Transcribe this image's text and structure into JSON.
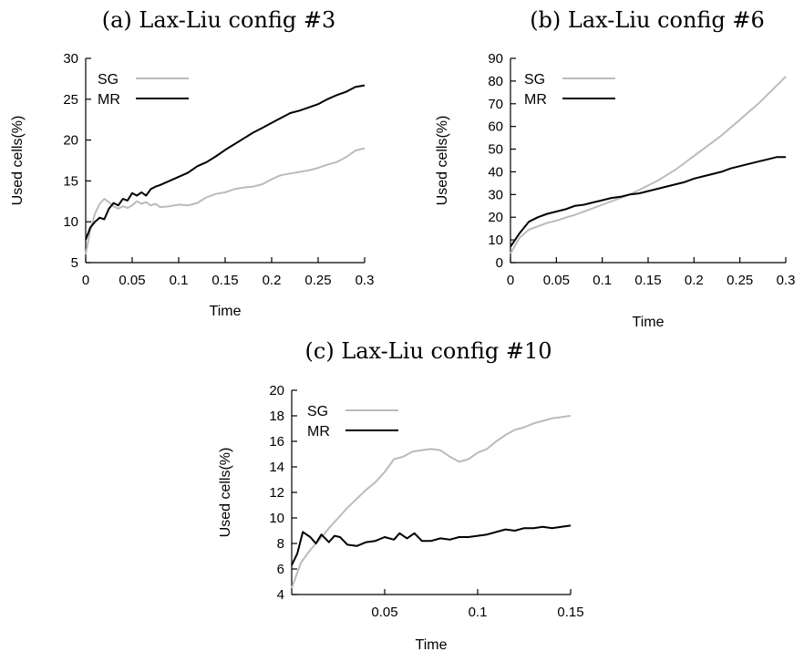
{
  "chart_data": [
    {
      "type": "line",
      "title": "(a) Lax-Liu config #3",
      "xlabel": "Time",
      "ylabel": "Used cells(%)",
      "xlim": [
        0,
        0.3
      ],
      "ylim": [
        5,
        30
      ],
      "xticks": [
        0,
        0.05,
        0.1,
        0.15,
        0.2,
        0.25,
        0.3
      ],
      "xtick_labels": [
        "0",
        "0.05",
        "0.1",
        "0.15",
        "0.2",
        "0.25",
        "0.3"
      ],
      "yticks": [
        5,
        10,
        15,
        20,
        25,
        30
      ],
      "ytick_labels": [
        "5",
        "10",
        "15",
        "20",
        "25",
        "30"
      ],
      "grid": false,
      "legend_position": "top-left",
      "series": [
        {
          "name": "SG",
          "color": "#bbbbbb",
          "x": [
            0,
            0.005,
            0.01,
            0.015,
            0.02,
            0.025,
            0.03,
            0.035,
            0.04,
            0.045,
            0.05,
            0.055,
            0.06,
            0.065,
            0.07,
            0.075,
            0.08,
            0.09,
            0.1,
            0.11,
            0.12,
            0.13,
            0.14,
            0.15,
            0.16,
            0.17,
            0.18,
            0.19,
            0.2,
            0.21,
            0.22,
            0.23,
            0.24,
            0.25,
            0.26,
            0.27,
            0.28,
            0.29,
            0.3
          ],
          "y": [
            6.0,
            9.0,
            11.0,
            12.2,
            12.8,
            12.4,
            11.9,
            11.6,
            11.9,
            11.7,
            12.0,
            12.5,
            12.2,
            12.4,
            12.0,
            12.2,
            11.8,
            11.9,
            12.1,
            12.0,
            12.3,
            13.0,
            13.4,
            13.6,
            14.0,
            14.2,
            14.3,
            14.6,
            15.2,
            15.7,
            15.9,
            16.1,
            16.3,
            16.6,
            17.0,
            17.3,
            17.9,
            18.7,
            19.0
          ]
        },
        {
          "name": "MR",
          "color": "#000000",
          "x": [
            0,
            0.005,
            0.01,
            0.015,
            0.02,
            0.025,
            0.03,
            0.035,
            0.04,
            0.045,
            0.05,
            0.055,
            0.06,
            0.065,
            0.07,
            0.075,
            0.08,
            0.09,
            0.1,
            0.11,
            0.12,
            0.13,
            0.14,
            0.15,
            0.16,
            0.17,
            0.18,
            0.19,
            0.2,
            0.21,
            0.22,
            0.23,
            0.24,
            0.25,
            0.26,
            0.27,
            0.28,
            0.29,
            0.3
          ],
          "y": [
            7.8,
            9.3,
            10.0,
            10.5,
            10.3,
            11.6,
            12.3,
            12.0,
            12.8,
            12.6,
            13.5,
            13.2,
            13.6,
            13.2,
            14.0,
            14.3,
            14.5,
            15.0,
            15.5,
            16.0,
            16.8,
            17.3,
            18.0,
            18.8,
            19.5,
            20.2,
            20.9,
            21.5,
            22.1,
            22.7,
            23.3,
            23.6,
            24.0,
            24.4,
            25.0,
            25.5,
            25.9,
            26.5,
            26.7
          ]
        }
      ]
    },
    {
      "type": "line",
      "title": "(b) Lax-Liu config #6",
      "xlabel": "Time",
      "ylabel": "Used cells(%)",
      "xlim": [
        0,
        0.3
      ],
      "ylim": [
        0,
        90
      ],
      "xticks": [
        0,
        0.05,
        0.1,
        0.15,
        0.2,
        0.25,
        0.3
      ],
      "xtick_labels": [
        "0",
        "0.05",
        "0.1",
        "0.15",
        "0.2",
        "0.25",
        "0.3"
      ],
      "yticks": [
        0,
        10,
        20,
        30,
        40,
        50,
        60,
        70,
        80,
        90
      ],
      "ytick_labels": [
        "0",
        "10",
        "20",
        "30",
        "40",
        "50",
        "60",
        "70",
        "80",
        "90"
      ],
      "grid": false,
      "legend_position": "top-left",
      "series": [
        {
          "name": "SG",
          "color": "#bbbbbb",
          "x": [
            0,
            0.01,
            0.02,
            0.03,
            0.04,
            0.05,
            0.06,
            0.07,
            0.08,
            0.09,
            0.1,
            0.11,
            0.12,
            0.13,
            0.14,
            0.15,
            0.16,
            0.17,
            0.18,
            0.19,
            0.2,
            0.21,
            0.22,
            0.23,
            0.24,
            0.25,
            0.26,
            0.27,
            0.28,
            0.29,
            0.3
          ],
          "y": [
            4.0,
            11.0,
            14.5,
            16.0,
            17.5,
            18.5,
            19.8,
            21.0,
            22.5,
            24.0,
            25.5,
            27.0,
            28.5,
            30.0,
            32.0,
            34.0,
            36.0,
            38.5,
            41.0,
            44.0,
            47.0,
            50.0,
            53.0,
            56.0,
            59.5,
            63.0,
            66.5,
            70.0,
            74.0,
            78.0,
            82.0
          ]
        },
        {
          "name": "MR",
          "color": "#000000",
          "x": [
            0,
            0.01,
            0.02,
            0.03,
            0.04,
            0.05,
            0.06,
            0.07,
            0.08,
            0.09,
            0.1,
            0.11,
            0.12,
            0.13,
            0.14,
            0.15,
            0.16,
            0.17,
            0.18,
            0.19,
            0.2,
            0.21,
            0.22,
            0.23,
            0.24,
            0.25,
            0.26,
            0.27,
            0.28,
            0.29,
            0.3
          ],
          "y": [
            7.0,
            13.0,
            18.0,
            20.0,
            21.5,
            22.5,
            23.5,
            25.0,
            25.5,
            26.5,
            27.5,
            28.5,
            29.0,
            30.0,
            30.5,
            31.5,
            32.5,
            33.5,
            34.5,
            35.5,
            37.0,
            38.0,
            39.0,
            40.0,
            41.5,
            42.5,
            43.5,
            44.5,
            45.5,
            46.5,
            46.5
          ]
        }
      ]
    },
    {
      "type": "line",
      "title": "(c) Lax-Liu config #10",
      "xlabel": "Time",
      "ylabel": "Used cells(%)",
      "xlim": [
        0,
        0.15
      ],
      "ylim": [
        4,
        20
      ],
      "xticks": [
        0.05,
        0.1,
        0.15
      ],
      "xtick_labels": [
        "0.05",
        "0.1",
        "0.15"
      ],
      "yticks": [
        4,
        6,
        8,
        10,
        12,
        14,
        16,
        18,
        20
      ],
      "ytick_labels": [
        "4",
        "6",
        "8",
        "10",
        "12",
        "14",
        "16",
        "18",
        "20"
      ],
      "grid": false,
      "legend_position": "top-left",
      "series": [
        {
          "name": "SG",
          "color": "#bbbbbb",
          "x": [
            0,
            0.005,
            0.01,
            0.015,
            0.02,
            0.025,
            0.03,
            0.035,
            0.04,
            0.045,
            0.05,
            0.055,
            0.06,
            0.065,
            0.07,
            0.075,
            0.08,
            0.085,
            0.09,
            0.095,
            0.1,
            0.105,
            0.11,
            0.115,
            0.12,
            0.125,
            0.13,
            0.135,
            0.14,
            0.145,
            0.15
          ],
          "y": [
            4.5,
            6.5,
            7.5,
            8.3,
            9.2,
            10.0,
            10.8,
            11.5,
            12.2,
            12.8,
            13.6,
            14.6,
            14.8,
            15.2,
            15.3,
            15.4,
            15.3,
            14.8,
            14.4,
            14.6,
            15.1,
            15.4,
            16.0,
            16.5,
            16.9,
            17.1,
            17.4,
            17.6,
            17.8,
            17.9,
            18.0
          ]
        },
        {
          "name": "MR",
          "color": "#000000",
          "x": [
            0,
            0.003,
            0.006,
            0.01,
            0.013,
            0.016,
            0.02,
            0.023,
            0.026,
            0.03,
            0.035,
            0.04,
            0.045,
            0.05,
            0.055,
            0.058,
            0.062,
            0.066,
            0.07,
            0.075,
            0.08,
            0.085,
            0.09,
            0.095,
            0.1,
            0.105,
            0.11,
            0.115,
            0.12,
            0.125,
            0.13,
            0.135,
            0.14,
            0.145,
            0.15
          ],
          "y": [
            6.3,
            7.2,
            8.9,
            8.5,
            8.0,
            8.7,
            8.1,
            8.6,
            8.5,
            7.9,
            7.8,
            8.1,
            8.2,
            8.5,
            8.3,
            8.8,
            8.4,
            8.8,
            8.2,
            8.2,
            8.4,
            8.3,
            8.5,
            8.5,
            8.6,
            8.7,
            8.9,
            9.1,
            9.0,
            9.2,
            9.2,
            9.3,
            9.2,
            9.3,
            9.4
          ]
        }
      ]
    }
  ]
}
